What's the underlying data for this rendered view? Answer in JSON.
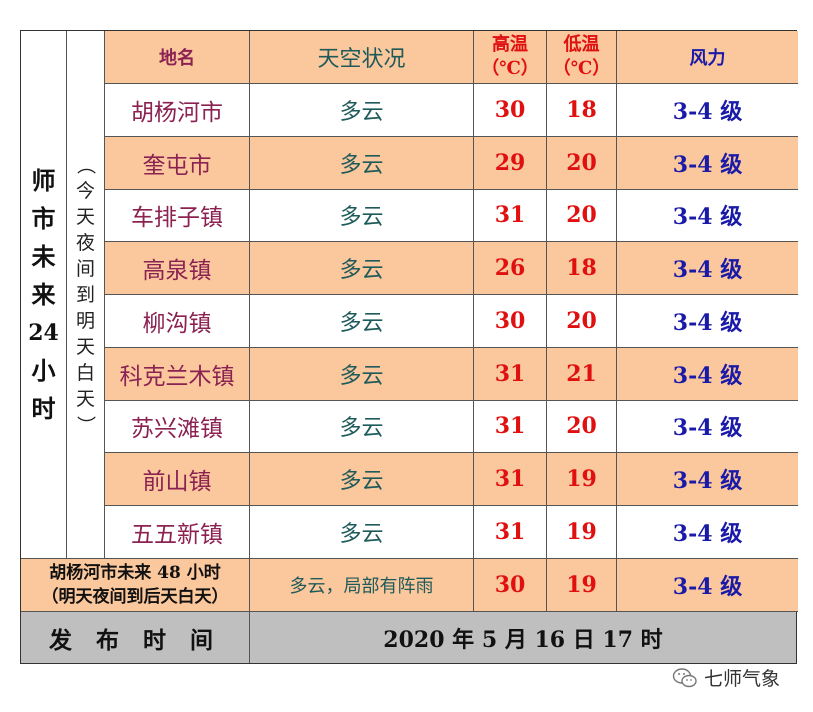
{
  "side_title_main": [
    "师",
    "市",
    "未",
    "来",
    "24",
    "小",
    "时"
  ],
  "side_title_sub": [
    "（",
    "今",
    "天",
    "夜",
    "间",
    "到",
    "明",
    "天",
    "白",
    "天",
    "）"
  ],
  "headers": {
    "name": "地名",
    "sky": "天空状况",
    "high_line1": "高温",
    "high_line2": "（℃）",
    "low_line1": "低温",
    "low_line2": "（℃）",
    "wind": "风力"
  },
  "rows": [
    {
      "name": "胡杨河市",
      "sky": "多云",
      "high": "30",
      "low": "18",
      "wind": "3-4 级"
    },
    {
      "name": "奎屯市",
      "sky": "多云",
      "high": "29",
      "low": "20",
      "wind": "3-4 级"
    },
    {
      "name": "车排子镇",
      "sky": "多云",
      "high": "31",
      "low": "20",
      "wind": "3-4 级"
    },
    {
      "name": "高泉镇",
      "sky": "多云",
      "high": "26",
      "low": "18",
      "wind": "3-4 级"
    },
    {
      "name": "柳沟镇",
      "sky": "多云",
      "high": "30",
      "low": "20",
      "wind": "3-4 级"
    },
    {
      "name": "科克兰木镇",
      "sky": "多云",
      "high": "31",
      "low": "21",
      "wind": "3-4 级"
    },
    {
      "name": "苏兴滩镇",
      "sky": "多云",
      "high": "31",
      "low": "20",
      "wind": "3-4 级"
    },
    {
      "name": "前山镇",
      "sky": "多云",
      "high": "31",
      "low": "19",
      "wind": "3-4 级"
    },
    {
      "name": "五五新镇",
      "sky": "多云",
      "high": "31",
      "low": "19",
      "wind": "3-4 级"
    }
  ],
  "forecast48": {
    "line1": "胡杨河市未来 48 小时",
    "line2": "（明天夜间到后天白天）",
    "sky": "多云，局部有阵雨",
    "high": "30",
    "low": "19",
    "wind": "3-4 级"
  },
  "publish": {
    "label": "发 布 时 间",
    "time": "2020 年 5 月 16 日 17 时"
  },
  "watermark": {
    "icon": "wechat-icon",
    "text": "七师气象"
  }
}
